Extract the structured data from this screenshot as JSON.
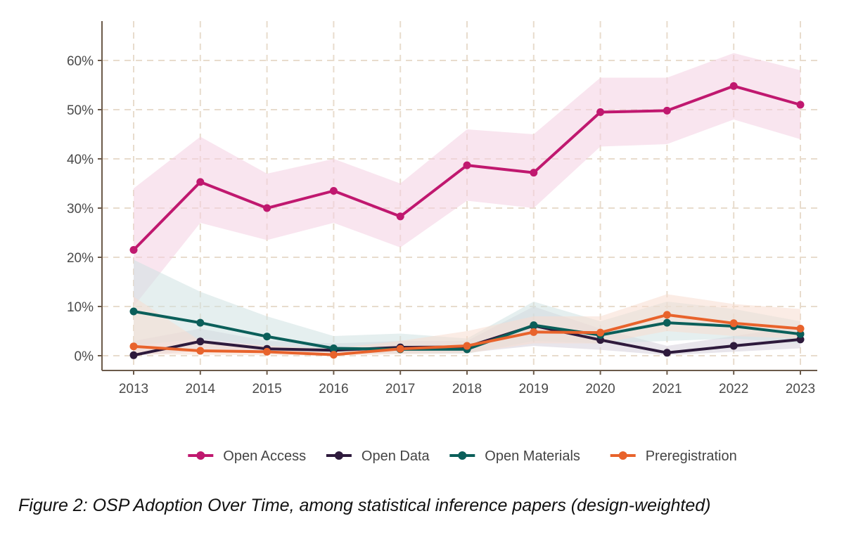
{
  "chart_data": {
    "type": "line",
    "title": "",
    "xlabel": "",
    "ylabel": "",
    "x": [
      2013,
      2014,
      2015,
      2016,
      2017,
      2018,
      2019,
      2020,
      2021,
      2022,
      2023
    ],
    "ylim": [
      -3,
      65
    ],
    "yticks": [
      0,
      10,
      20,
      30,
      40,
      50,
      60
    ],
    "ytick_labels": [
      "0%",
      "10%",
      "20%",
      "30%",
      "40%",
      "50%",
      "60%"
    ],
    "xtick_labels": [
      "2013",
      "2014",
      "2015",
      "2016",
      "2017",
      "2018",
      "2019",
      "2020",
      "2021",
      "2022",
      "2023"
    ],
    "grid": true,
    "legend_position": "bottom",
    "series": [
      {
        "name": "Open Access",
        "color": "#c0186f",
        "band_color": "#f4cfe1",
        "values": [
          21.5,
          35.3,
          30.0,
          33.5,
          28.3,
          38.7,
          37.2,
          49.5,
          49.8,
          54.8,
          51.0
        ],
        "lower": [
          10.0,
          27.0,
          23.5,
          27.0,
          22.0,
          31.5,
          30.0,
          42.5,
          43.0,
          48.0,
          44.0
        ],
        "upper": [
          34.0,
          44.5,
          37.0,
          40.0,
          35.0,
          46.0,
          45.0,
          56.5,
          56.5,
          61.5,
          58.0
        ]
      },
      {
        "name": "Open Data",
        "color": "#2e1a3c",
        "band_color": "#d6d0db",
        "values": [
          0.1,
          2.9,
          1.4,
          1.1,
          1.7,
          1.8,
          6.1,
          3.2,
          0.6,
          2.0,
          3.3
        ],
        "lower": [
          0.0,
          1.0,
          0.5,
          0.3,
          0.5,
          0.6,
          2.0,
          1.2,
          0.1,
          0.8,
          1.5
        ],
        "upper": [
          3.0,
          5.5,
          3.0,
          2.5,
          3.0,
          3.0,
          10.0,
          5.5,
          2.0,
          4.0,
          6.0
        ]
      },
      {
        "name": "Open Materials",
        "color": "#0b5f5a",
        "band_color": "#cfe2e2",
        "values": [
          9.0,
          6.7,
          3.9,
          1.5,
          1.3,
          1.3,
          6.2,
          4.2,
          6.7,
          6.0,
          4.4
        ],
        "lower": [
          2.0,
          3.5,
          2.0,
          0.5,
          0.4,
          0.4,
          3.0,
          2.5,
          3.0,
          3.5,
          2.5
        ],
        "upper": [
          19.5,
          13.0,
          8.0,
          4.0,
          4.5,
          3.5,
          11.0,
          7.0,
          11.0,
          9.5,
          7.0
        ]
      },
      {
        "name": "Preregistration",
        "color": "#e8632c",
        "band_color": "#f8ddd0",
        "values": [
          1.9,
          1.0,
          0.8,
          0.2,
          1.4,
          2.0,
          4.8,
          4.7,
          8.3,
          6.6,
          5.5
        ],
        "lower": [
          0.3,
          0.2,
          0.1,
          0.0,
          0.3,
          0.5,
          2.5,
          2.5,
          5.0,
          4.0,
          3.5
        ],
        "upper": [
          12.0,
          3.0,
          2.0,
          1.5,
          3.0,
          5.0,
          8.0,
          8.0,
          12.5,
          10.5,
          9.5
        ]
      }
    ]
  },
  "caption": "Figure 2: OSP Adoption Over Time, among statistical inference papers (design-weighted)"
}
